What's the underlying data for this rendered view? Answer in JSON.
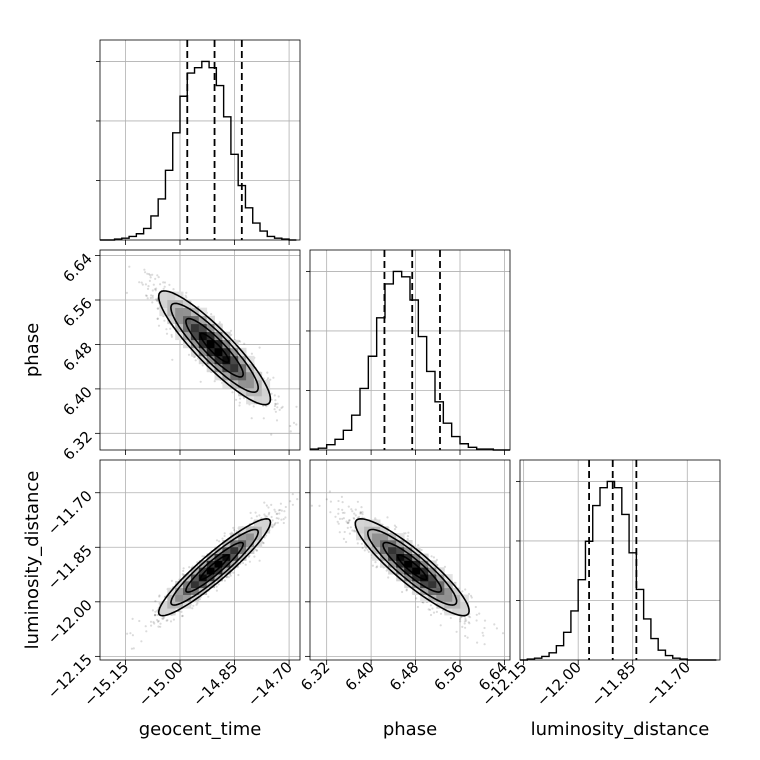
{
  "chart_data": {
    "type": "corner",
    "title": "",
    "parameters": [
      "geocent_time",
      "phase",
      "luminosity_distance"
    ],
    "ranges": {
      "geocent_time": [
        -15.22,
        -14.67
      ],
      "phase": [
        6.29,
        6.65
      ],
      "luminosity_distance": [
        -12.16,
        -11.61
      ]
    },
    "ticks": {
      "geocent_time": [
        "−15.15",
        "−15.00",
        "−14.85",
        "−14.70"
      ],
      "phase": [
        "6.32",
        "6.40",
        "6.48",
        "6.56",
        "6.64"
      ],
      "luminosity_distance": [
        "−12.15",
        "−12.00",
        "−11.85",
        "−11.70"
      ]
    },
    "tick_values": {
      "geocent_time": [
        -15.15,
        -15.0,
        -14.85,
        -14.7
      ],
      "phase": [
        6.32,
        6.4,
        6.48,
        6.56,
        6.64
      ],
      "luminosity_distance": [
        -12.15,
        -12.0,
        -11.85,
        -11.7
      ]
    },
    "quantiles": {
      "geocent_time": [
        -14.98,
        -14.905,
        -14.83
      ],
      "phase": [
        6.424,
        6.474,
        6.524
      ],
      "luminosity_distance": [
        -11.97,
        -11.905,
        -11.84
      ]
    },
    "histograms": {
      "geocent_time": {
        "bin_edges": [
          -15.22,
          -15.2,
          -15.18,
          -15.16,
          -15.14,
          -15.12,
          -15.1,
          -15.08,
          -15.06,
          -15.04,
          -15.02,
          -15.0,
          -14.98,
          -14.96,
          -14.94,
          -14.92,
          -14.9,
          -14.88,
          -14.86,
          -14.84,
          -14.82,
          -14.8,
          -14.78,
          -14.76,
          -14.74,
          -14.72,
          -14.7,
          -14.68
        ],
        "counts": [
          0,
          0,
          1,
          2,
          4,
          7,
          13,
          27,
          46,
          78,
          120,
          161,
          187,
          193,
          200,
          193,
          173,
          138,
          96,
          61,
          36,
          19,
          10,
          4,
          2,
          1,
          0
        ]
      },
      "phase": {
        "bin_edges": [
          6.29,
          6.305,
          6.32,
          6.335,
          6.35,
          6.365,
          6.38,
          6.395,
          6.41,
          6.425,
          6.44,
          6.455,
          6.47,
          6.485,
          6.5,
          6.515,
          6.53,
          6.545,
          6.56,
          6.575,
          6.59,
          6.605,
          6.62,
          6.635,
          6.65
        ],
        "counts": [
          1,
          2,
          6,
          12,
          22,
          39,
          69,
          105,
          148,
          186,
          200,
          194,
          168,
          127,
          88,
          54,
          30,
          15,
          7,
          3,
          1,
          1,
          0,
          0
        ]
      },
      "luminosity_distance": {
        "bin_edges": [
          -12.16,
          -12.14,
          -12.12,
          -12.1,
          -12.08,
          -12.06,
          -12.04,
          -12.02,
          -12.0,
          -11.98,
          -11.96,
          -11.94,
          -11.92,
          -11.9,
          -11.88,
          -11.86,
          -11.84,
          -11.82,
          -11.8,
          -11.78,
          -11.76,
          -11.74,
          -11.72,
          -11.7,
          -11.68,
          -11.66,
          -11.64,
          -11.62
        ],
        "counts": [
          0,
          1,
          2,
          4,
          8,
          16,
          31,
          55,
          90,
          133,
          173,
          193,
          200,
          193,
          163,
          120,
          79,
          46,
          24,
          11,
          5,
          2,
          1,
          0,
          0,
          0,
          0
        ]
      }
    },
    "pair_stats": {
      "geocent_time|phase": {
        "mean": [
          -14.905,
          6.474
        ],
        "sd": [
          0.075,
          0.05
        ],
        "corr": -0.9
      },
      "geocent_time|luminosity_distance": {
        "mean": [
          -14.905,
          -11.905
        ],
        "sd": [
          0.075,
          0.065
        ],
        "corr": 0.93
      },
      "phase|luminosity_distance": {
        "mean": [
          6.474,
          -11.905
        ],
        "sd": [
          0.05,
          0.065
        ],
        "corr": -0.9
      }
    },
    "grid": true
  }
}
